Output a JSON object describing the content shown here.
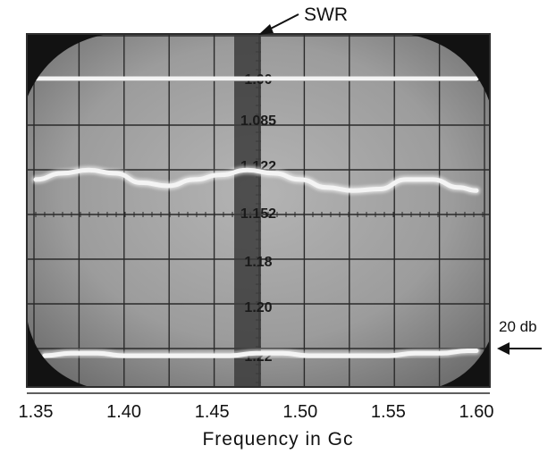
{
  "chart_data": {
    "type": "line",
    "title": "",
    "xlabel": "Frequency in Gc",
    "ylabel": "",
    "x_ticks": [
      "1.35",
      "1.40",
      "1.45",
      "1.50",
      "1.55",
      "1.60"
    ],
    "xlim": [
      1.35,
      1.6
    ],
    "swr_scale": [
      "1.00",
      "1.085",
      "1.122",
      "1.152",
      "1.18",
      "1.20",
      "1.22"
    ],
    "annotations": {
      "swr": "SWR",
      "db": "20 db"
    },
    "grid": true,
    "series": [
      {
        "x": [
          1.35,
          1.4,
          1.45,
          1.5,
          1.55,
          1.6
        ],
        "swr": [
          1.0,
          1.0,
          1.0,
          1.0,
          1.0,
          1.0
        ]
      },
      {
        "x": [
          1.35,
          1.365,
          1.38,
          1.395,
          1.41,
          1.425,
          1.44,
          1.455,
          1.47,
          1.485,
          1.5,
          1.515,
          1.53,
          1.545,
          1.56,
          1.575,
          1.59,
          1.6
        ],
        "swr": [
          1.131,
          1.127,
          1.125,
          1.127,
          1.133,
          1.135,
          1.131,
          1.128,
          1.125,
          1.127,
          1.131,
          1.136,
          1.138,
          1.137,
          1.131,
          1.131,
          1.136,
          1.138
        ]
      },
      {
        "x": [
          1.355,
          1.37,
          1.385,
          1.4,
          1.415,
          1.43,
          1.445,
          1.46,
          1.475,
          1.49,
          1.505,
          1.52,
          1.535,
          1.55,
          1.565,
          1.58,
          1.595,
          1.6
        ],
        "swr": [
          1.22,
          1.219,
          1.219,
          1.22,
          1.221,
          1.222,
          1.221,
          1.22,
          1.219,
          1.219,
          1.22,
          1.221,
          1.221,
          1.22,
          1.219,
          1.219,
          1.218,
          1.218
        ]
      }
    ],
    "colors": {
      "screen": "#9a9a9a",
      "trace": "#f4f4f4",
      "grid": "#2a2a2a",
      "marker_band": "#3c3c3c",
      "mask": "#121212"
    }
  }
}
